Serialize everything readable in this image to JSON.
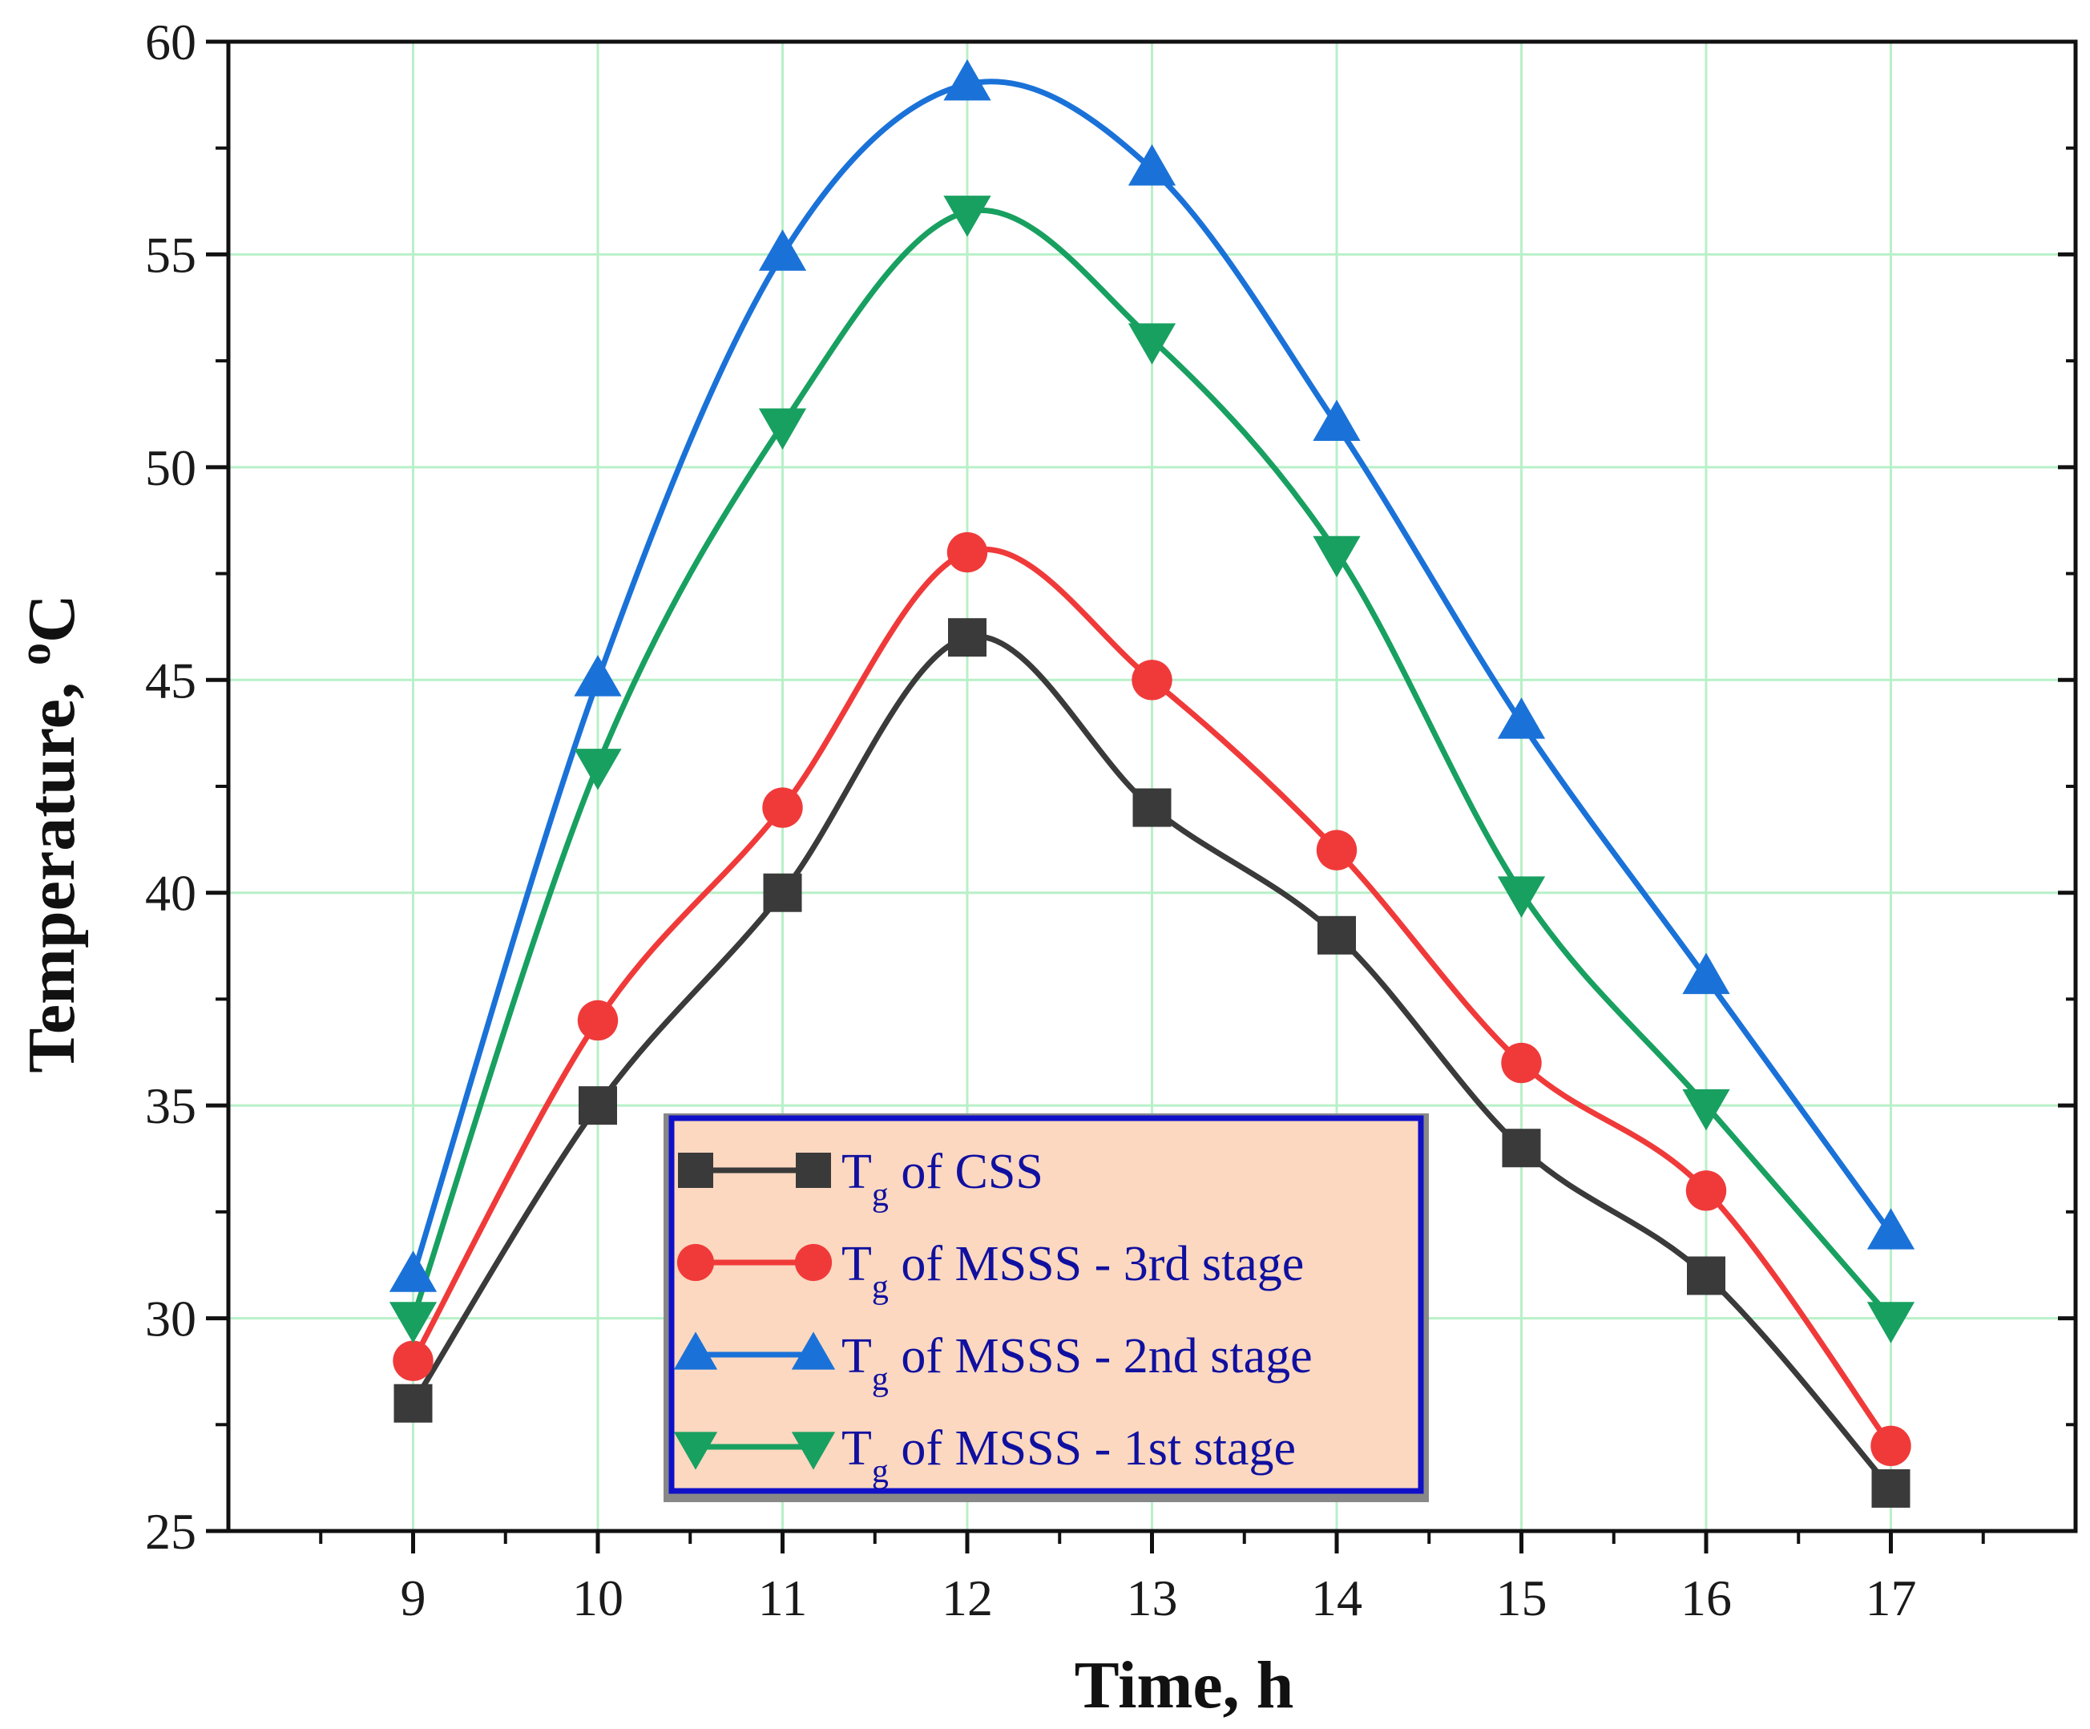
{
  "chart_data": {
    "type": "line",
    "title": "",
    "xlabel": "Time, h",
    "ylabel_main": "Temperature, ",
    "ylabel_sup": "o",
    "ylabel_unit": "C",
    "x": [
      9,
      10,
      11,
      12,
      13,
      14,
      15,
      16,
      17
    ],
    "xlim": [
      8,
      18
    ],
    "ylim": [
      25,
      60
    ],
    "x_ticks": [
      "9",
      "10",
      "11",
      "12",
      "13",
      "14",
      "15",
      "16",
      "17"
    ],
    "y_ticks": [
      "25",
      "30",
      "35",
      "40",
      "45",
      "50",
      "55",
      "60"
    ],
    "grid": true,
    "grid_color": "#b8f0c8",
    "legend_position": "bottom-center",
    "legend_bg": "#fcd8c0",
    "legend_border": "#1010c8",
    "series": [
      {
        "name": "Tg of CSS",
        "label_main": "T",
        "label_sub": "g",
        "label_rest": " of CSS",
        "marker": "square",
        "color": "#3a3a3a",
        "values": [
          28,
          35,
          40,
          46,
          42,
          39,
          34,
          31,
          26
        ]
      },
      {
        "name": "Tg of MSSS - 3rd stage",
        "label_main": "T",
        "label_sub": "g",
        "label_rest": " of MSSS - 3rd stage",
        "marker": "circle",
        "color": "#f03a3a",
        "values": [
          29,
          37,
          42,
          48,
          45,
          41,
          36,
          33,
          27
        ]
      },
      {
        "name": "Tg of MSSS - 2nd stage",
        "label_main": "T",
        "label_sub": "g",
        "label_rest": " of MSSS - 2nd stage",
        "marker": "triangle-up",
        "color": "#1a72d8",
        "values": [
          31,
          45,
          55,
          59,
          57,
          51,
          44,
          38,
          32
        ]
      },
      {
        "name": "Tg of MSSS - 1st stage",
        "label_main": "T",
        "label_sub": "g",
        "label_rest": " of MSSS - 1st stage",
        "marker": "triangle-down",
        "color": "#18a060",
        "values": [
          30,
          43,
          51,
          56,
          53,
          48,
          40,
          35,
          30
        ]
      }
    ]
  }
}
